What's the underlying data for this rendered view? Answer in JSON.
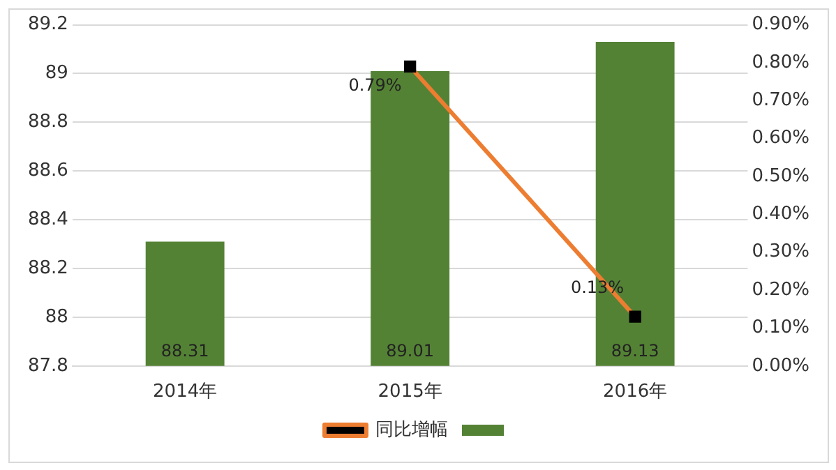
{
  "chart_data": {
    "type": "bar",
    "categories": [
      "2014年",
      "2015年",
      "2016年"
    ],
    "series": [
      {
        "color": "#548235",
        "values": [
          88.31,
          89.01,
          89.13
        ],
        "data_labels": true
      },
      {
        "type": "line",
        "name": "同比增幅",
        "color": "#ed7d31",
        "axis": "y2",
        "marker": "square",
        "values": [
          null,
          0.79,
          0.13
        ],
        "value_labels": [
          null,
          "0.79%",
          "0.13%"
        ]
      }
    ],
    "ylim": [
      87.8,
      89.2
    ],
    "yticks": [
      87.8,
      88,
      88.2,
      88.4,
      88.6,
      88.8,
      89,
      89.2
    ],
    "y2lim": [
      0,
      0.9
    ],
    "y2ticks": [
      {
        "value": 0,
        "label": "0.00%"
      },
      {
        "value": 0.1,
        "label": "0.10%"
      },
      {
        "value": 0.2,
        "label": "0.20%"
      },
      {
        "value": 0.3,
        "label": "0.30%"
      },
      {
        "value": 0.4,
        "label": "0.40%"
      },
      {
        "value": 0.5,
        "label": "0.50%"
      },
      {
        "value": 0.6,
        "label": "0.60%"
      },
      {
        "value": 0.7,
        "label": "0.70%"
      },
      {
        "value": 0.8,
        "label": "0.80%"
      },
      {
        "value": 0.9,
        "label": "0.90%"
      }
    ],
    "grid": "y",
    "legend": "bottom"
  }
}
